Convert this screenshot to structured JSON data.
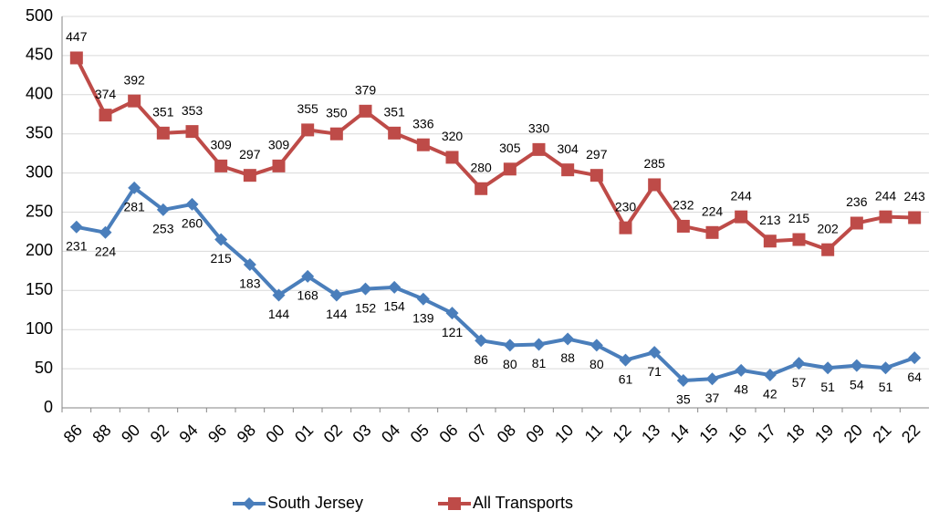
{
  "chart_data": {
    "type": "line",
    "categories": [
      "86",
      "88",
      "90",
      "92",
      "94",
      "96",
      "98",
      "00",
      "01",
      "02",
      "03",
      "04",
      "05",
      "06",
      "07",
      "08",
      "09",
      "10",
      "11",
      "12",
      "13",
      "14",
      "15",
      "16",
      "17",
      "18",
      "19",
      "20",
      "21",
      "22"
    ],
    "series": [
      {
        "name": "South Jersey",
        "color": "#4a7ebb",
        "marker": "diamond",
        "label_position": "below",
        "values": [
          231,
          224,
          281,
          253,
          260,
          215,
          183,
          144,
          168,
          144,
          152,
          154,
          139,
          121,
          86,
          80,
          81,
          88,
          80,
          61,
          71,
          35,
          37,
          48,
          42,
          57,
          51,
          54,
          51,
          64
        ]
      },
      {
        "name": "All Transports",
        "color": "#be4b48",
        "marker": "square",
        "label_position": "above",
        "values": [
          447,
          374,
          392,
          351,
          353,
          309,
          297,
          309,
          355,
          350,
          379,
          351,
          336,
          320,
          280,
          305,
          330,
          304,
          297,
          230,
          285,
          232,
          224,
          244,
          213,
          215,
          202,
          236,
          244,
          243
        ]
      }
    ],
    "ylim": [
      0,
      500
    ],
    "yticks": [
      0,
      50,
      100,
      150,
      200,
      250,
      300,
      350,
      400,
      450,
      500
    ],
    "grid": true,
    "legend": "bottom"
  }
}
